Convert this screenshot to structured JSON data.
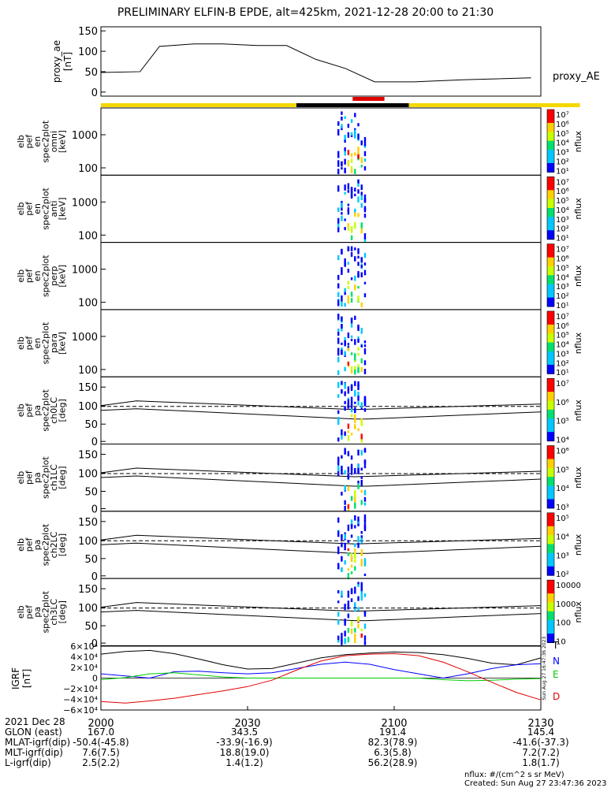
{
  "title": "PRELIMINARY ELFIN-B EPDE, alt=425km, 2021-12-28 20:00 to 21:30",
  "chart_data": {
    "type": "spectrogram_stack",
    "time_range": [
      "2021-12-28 20:00",
      "2021-12-28 21:30"
    ],
    "proxy_ae": {
      "ylabel": [
        "proxy_ae",
        "[nT]"
      ],
      "side_label": "proxy_AE",
      "y_ticks": [
        "150",
        "100",
        "50",
        "0"
      ],
      "ylim": [
        -10,
        160
      ],
      "x": [
        0,
        8,
        12,
        19,
        25,
        32,
        38,
        44,
        50,
        56,
        64,
        74,
        88
      ],
      "y": [
        48,
        50,
        112,
        118,
        118,
        114,
        114,
        80,
        58,
        25,
        25,
        30,
        35
      ]
    },
    "status_bar": {
      "colors": {
        "yellow": "#f5d800",
        "black": "#000000",
        "red": "#e00000"
      },
      "segments": [
        {
          "from": 0,
          "to": 40,
          "color": "yellow"
        },
        {
          "from": 40,
          "to": 63,
          "color": "black"
        },
        {
          "from": 63,
          "to": 98,
          "color": "yellow"
        }
      ],
      "marker": {
        "from": 51.5,
        "to": 58
      }
    },
    "spectrograms": [
      {
        "ylabel": [
          "elb",
          "pef",
          "en",
          "spec2plot",
          "omni",
          "[keV]"
        ],
        "y_ticks": [
          "1000",
          "100"
        ],
        "y_scale": "log",
        "cbar_ticks": [
          "10⁷",
          "10⁶",
          "10⁵",
          "10⁴",
          "10³",
          "10²",
          "10¹"
        ],
        "cbar_label": "nflux"
      },
      {
        "ylabel": [
          "elb",
          "pef",
          "en",
          "spec2plot",
          "anti",
          "[keV]"
        ],
        "y_ticks": [
          "1000",
          "100"
        ],
        "y_scale": "log",
        "cbar_ticks": [
          "10⁷",
          "10⁶",
          "10⁵",
          "10⁴",
          "10³",
          "10²",
          "10¹"
        ],
        "cbar_label": "nflux"
      },
      {
        "ylabel": [
          "elb",
          "pef",
          "en",
          "spec2plot",
          "perp",
          "[keV]"
        ],
        "y_ticks": [
          "1000",
          "100"
        ],
        "y_scale": "log",
        "cbar_ticks": [
          "10⁷",
          "10⁶",
          "10⁵",
          "10⁴",
          "10³",
          "10²",
          "10¹"
        ],
        "cbar_label": "nflux"
      },
      {
        "ylabel": [
          "elb",
          "pef",
          "en",
          "spec2plot",
          "para",
          "[keV]"
        ],
        "y_ticks": [
          "1000",
          "100"
        ],
        "y_scale": "log",
        "cbar_ticks": [
          "10⁷",
          "10⁶",
          "10⁵",
          "10⁴",
          "10³",
          "10²",
          "10¹"
        ],
        "cbar_label": "nflux"
      },
      {
        "ylabel": [
          "elb",
          "pef",
          "pa",
          "spec2plot",
          "ch0LC",
          "[deg]"
        ],
        "y_ticks": [
          "150",
          "100",
          "50",
          "0"
        ],
        "y_scale": "linear",
        "cbar_ticks": [
          "10⁷",
          "10⁶",
          "10⁵",
          "10⁴"
        ],
        "cbar_label": "nflux"
      },
      {
        "ylabel": [
          "elb",
          "pef",
          "pa",
          "spec2plot",
          "ch1LC",
          "[deg]"
        ],
        "y_ticks": [
          "150",
          "100",
          "50",
          "0"
        ],
        "y_scale": "linear",
        "cbar_ticks": [
          "10⁶",
          "10⁵",
          "10⁴",
          "10³"
        ],
        "cbar_label": "nflux"
      },
      {
        "ylabel": [
          "elb",
          "pef",
          "pa",
          "spec2plot",
          "ch2LC",
          "[deg]"
        ],
        "y_ticks": [
          "150",
          "100",
          "50",
          "0"
        ],
        "y_scale": "linear",
        "cbar_ticks": [
          "10⁵",
          "10⁴",
          "10³",
          "10²"
        ],
        "cbar_label": "nflux"
      },
      {
        "ylabel": [
          "elb",
          "pef",
          "pa",
          "spec2plot",
          "ch3LC",
          "[deg]"
        ],
        "y_ticks": [
          "150",
          "100",
          "50",
          "0"
        ],
        "y_scale": "linear",
        "cbar_ticks": [
          "10000",
          "1000",
          "100",
          "10"
        ],
        "cbar_label": "nflux"
      }
    ],
    "igrf": {
      "ylabel": [
        "IGRF",
        "[nT]"
      ],
      "y_ticks": [
        "6×10⁴",
        "4×10⁴",
        "2×10⁴",
        "0",
        "−2×10⁴",
        "−4×10⁴",
        "−6×10⁴"
      ],
      "ylim": [
        -60000,
        60000
      ],
      "x": [
        0,
        5,
        10,
        15,
        20,
        25,
        30,
        35,
        40,
        45,
        50,
        55,
        60,
        65,
        70,
        75,
        80,
        85,
        90
      ],
      "series": [
        {
          "name": "T",
          "color": "#000000",
          "values": [
            45000,
            50000,
            52000,
            46000,
            36000,
            25000,
            17000,
            18000,
            28000,
            38000,
            44000,
            47000,
            49000,
            48000,
            44000,
            37000,
            28000,
            25000,
            38000
          ]
        },
        {
          "name": "N",
          "color": "#0000ff",
          "values": [
            8000,
            4000,
            0,
            12000,
            13000,
            10000,
            8000,
            10000,
            18000,
            26000,
            30000,
            26000,
            16000,
            8000,
            0,
            8000,
            18000,
            25000,
            27000
          ]
        },
        {
          "name": "E",
          "color": "#00cc00",
          "values": [
            -3000,
            1000,
            8000,
            10000,
            6000,
            2000,
            0,
            0,
            0,
            0,
            0,
            0,
            0,
            0,
            -3000,
            -5000,
            -4000,
            -2000,
            -1000
          ]
        },
        {
          "name": "D",
          "color": "#e00000",
          "values": [
            -44000,
            -47000,
            -43000,
            -38000,
            -31000,
            -24000,
            -16000,
            -4000,
            15000,
            32000,
            42000,
            45000,
            46000,
            42000,
            30000,
            12000,
            -8000,
            -27000,
            -41000
          ]
        }
      ],
      "stamp": "Sun Aug 27 16:47:36 2023"
    },
    "x_ticks": [
      {
        "x": 0,
        "label": "2000"
      },
      {
        "x": 30,
        "label": "2030"
      },
      {
        "x": 60,
        "label": "2100"
      },
      {
        "x": 90,
        "label": "2130"
      }
    ]
  },
  "footer": {
    "rows": [
      {
        "label": "2021 Dec 28",
        "values": [
          "",
          "",
          "",
          ""
        ]
      },
      {
        "label": "GLON (east)",
        "values": [
          "167.0",
          "343.5",
          "191.4",
          "145.4"
        ]
      },
      {
        "label": "MLAT-igrf(dip)",
        "values": [
          "-50.4(-45.8)",
          "-33.9(-16.9)",
          "82.3(78.9)",
          "-41.6(-37.3)"
        ]
      },
      {
        "label": "MLT-igrf(dip)",
        "values": [
          "7.6(7.5)",
          "18.8(19.0)",
          "6.3(5.8)",
          "7.2(7.2)"
        ]
      },
      {
        "label": "L-igrf(dip)",
        "values": [
          "2.5(2.2)",
          "1.4(1.2)",
          "56.2(28.9)",
          "1.8(1.7)"
        ]
      }
    ],
    "units_note": "nflux: #/(cm^2 s sr MeV)",
    "created": "Created: Sun Aug 27 23:47:36 2023"
  }
}
